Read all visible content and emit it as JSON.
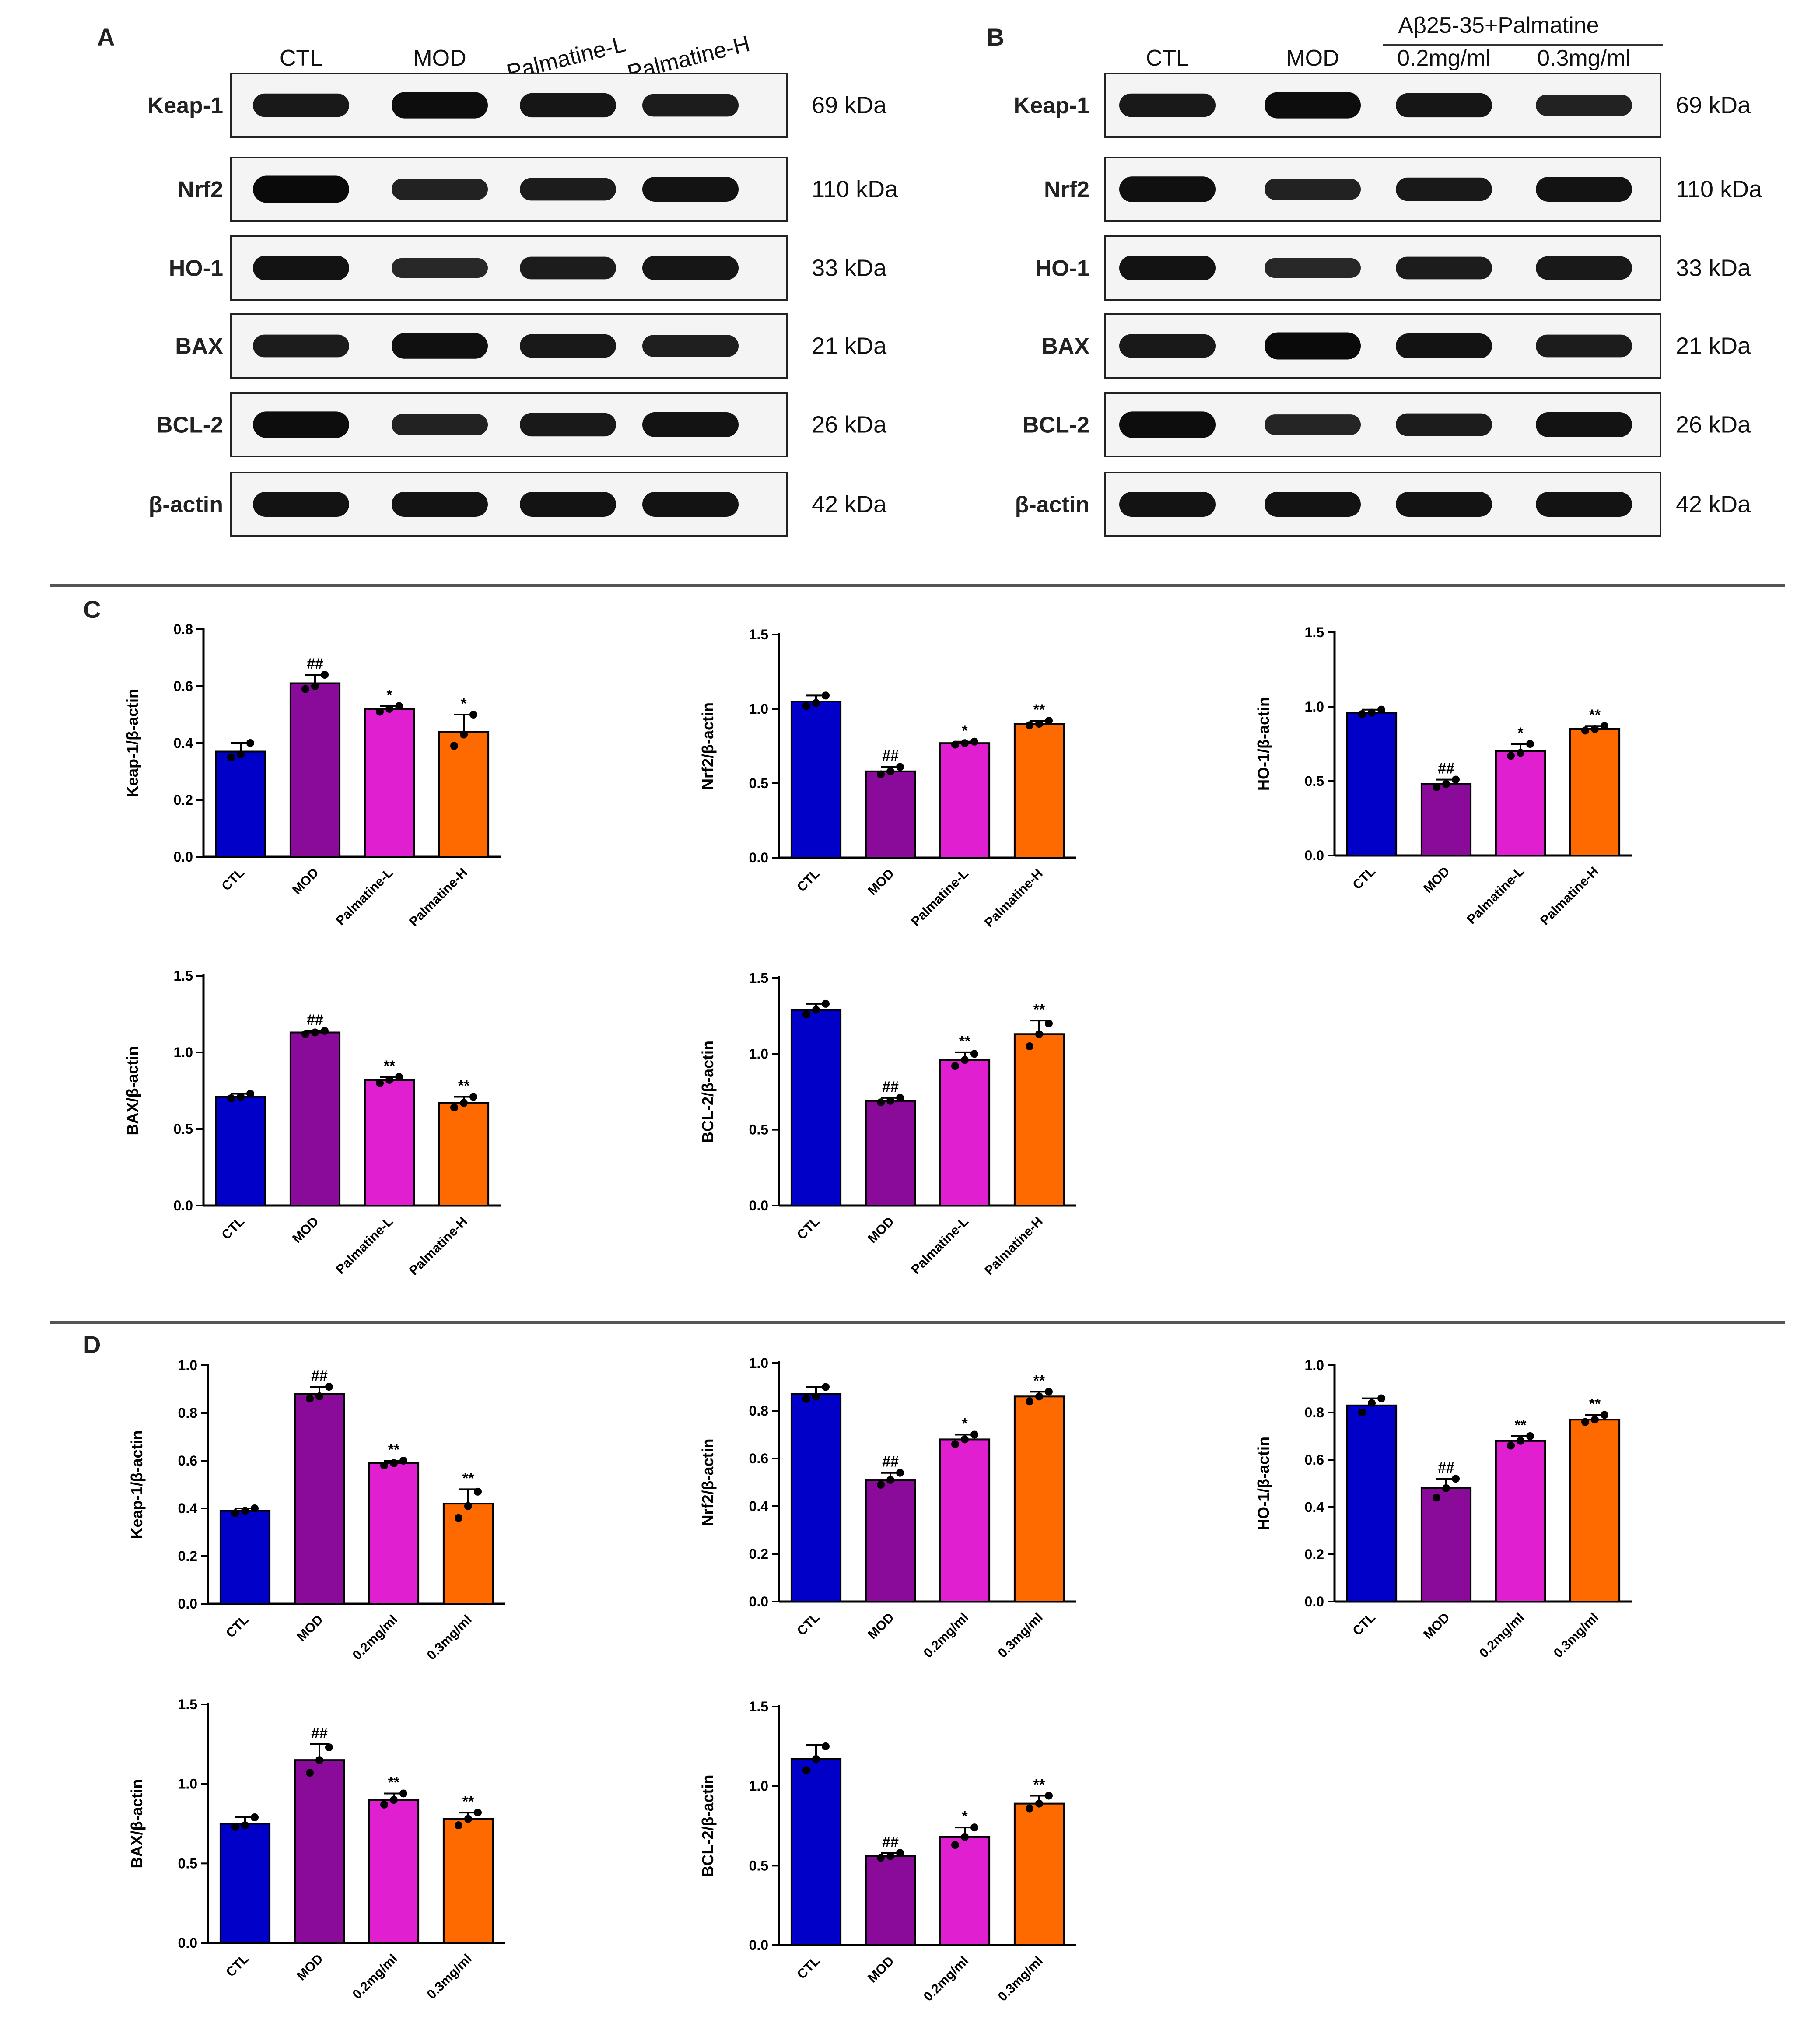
{
  "panels": {
    "A": "A",
    "B": "B",
    "C": "C",
    "D": "D"
  },
  "blot_a": {
    "lanes": [
      "CTL",
      "MOD",
      "Palmatine-L",
      "Palmatine-H"
    ],
    "rows": [
      {
        "protein": "Keap-1",
        "kda": "69 kDa",
        "intensity": [
          0.75,
          0.95,
          0.8,
          0.7
        ]
      },
      {
        "protein": "Nrf2",
        "kda": "110 kDa",
        "intensity": [
          1.0,
          0.6,
          0.7,
          0.85
        ]
      },
      {
        "protein": "HO-1",
        "kda": "33 kDa",
        "intensity": [
          0.85,
          0.5,
          0.7,
          0.8
        ]
      },
      {
        "protein": "BAX",
        "kda": "21 kDa",
        "intensity": [
          0.7,
          0.9,
          0.75,
          0.65
        ]
      },
      {
        "protein": "BCL-2",
        "kda": "26 kDa",
        "intensity": [
          0.95,
          0.6,
          0.75,
          0.85
        ]
      },
      {
        "protein": "β-actin",
        "kda": "42 kDa",
        "intensity": [
          0.85,
          0.85,
          0.85,
          0.85
        ]
      }
    ]
  },
  "blot_b": {
    "header": "Aβ25-35+Palmatine",
    "lanes": [
      "CTL",
      "MOD",
      "0.2mg/ml",
      "0.3mg/ml"
    ],
    "rows": [
      {
        "protein": "Keap-1",
        "kda": "69 kDa",
        "intensity": [
          0.75,
          0.95,
          0.8,
          0.6
        ]
      },
      {
        "protein": "Nrf2",
        "kda": "110 kDa",
        "intensity": [
          0.9,
          0.6,
          0.75,
          0.85
        ]
      },
      {
        "protein": "HO-1",
        "kda": "33 kDa",
        "intensity": [
          0.85,
          0.5,
          0.7,
          0.75
        ]
      },
      {
        "protein": "BAX",
        "kda": "21 kDa",
        "intensity": [
          0.75,
          1.0,
          0.85,
          0.7
        ]
      },
      {
        "protein": "BCL-2",
        "kda": "26 kDa",
        "intensity": [
          0.95,
          0.55,
          0.7,
          0.85
        ]
      },
      {
        "protein": "β-actin",
        "kda": "42 kDa",
        "intensity": [
          0.85,
          0.85,
          0.85,
          0.85
        ]
      }
    ]
  },
  "colors": {
    "CTL": "#0000c8",
    "MOD": "#8a0a9a",
    "L": "#e020d0",
    "H": "#ff6a00"
  },
  "chart_data": [
    {
      "id": "C1",
      "type": "bar",
      "ylabel": "Keap-1/β-actin",
      "ylim": [
        0,
        0.8
      ],
      "ticks": [
        "0.0",
        "0.2",
        "0.4",
        "0.6",
        "0.8"
      ],
      "categories": [
        "CTL",
        "MOD",
        "Palmatine-L",
        "Palmatine-H"
      ],
      "values": [
        0.37,
        0.61,
        0.52,
        0.44
      ],
      "errors": [
        0.03,
        0.03,
        0.01,
        0.06
      ],
      "points": [
        [
          0.35,
          0.36,
          0.4
        ],
        [
          0.59,
          0.6,
          0.64
        ],
        [
          0.51,
          0.52,
          0.53
        ],
        [
          0.39,
          0.43,
          0.5
        ]
      ],
      "sig": [
        "",
        "##",
        "*",
        "*"
      ]
    },
    {
      "id": "C2",
      "type": "bar",
      "ylabel": "Nrf2/β-actin",
      "ylim": [
        0,
        1.5
      ],
      "ticks": [
        "0.0",
        "0.5",
        "1.0",
        "1.5"
      ],
      "categories": [
        "CTL",
        "MOD",
        "Palmatine-L",
        "Palmatine-H"
      ],
      "values": [
        1.05,
        0.58,
        0.77,
        0.9
      ],
      "errors": [
        0.04,
        0.03,
        0.01,
        0.02
      ],
      "points": [
        [
          1.02,
          1.04,
          1.09
        ],
        [
          0.56,
          0.58,
          0.61
        ],
        [
          0.76,
          0.77,
          0.78
        ],
        [
          0.89,
          0.9,
          0.92
        ]
      ],
      "sig": [
        "",
        "##",
        "*",
        "**"
      ]
    },
    {
      "id": "C3",
      "type": "bar",
      "ylabel": "HO-1/β-actin",
      "ylim": [
        0,
        1.5
      ],
      "ticks": [
        "0.0",
        "0.5",
        "1.0",
        "1.5"
      ],
      "categories": [
        "CTL",
        "MOD",
        "Palmatine-L",
        "Palmatine-H"
      ],
      "values": [
        0.96,
        0.48,
        0.7,
        0.85
      ],
      "errors": [
        0.02,
        0.03,
        0.05,
        0.02
      ],
      "points": [
        [
          0.95,
          0.96,
          0.98
        ],
        [
          0.46,
          0.48,
          0.51
        ],
        [
          0.67,
          0.69,
          0.75
        ],
        [
          0.84,
          0.85,
          0.87
        ]
      ],
      "sig": [
        "",
        "##",
        "*",
        "**"
      ]
    },
    {
      "id": "C4",
      "type": "bar",
      "ylabel": "BAX/β-actin",
      "ylim": [
        0,
        1.5
      ],
      "ticks": [
        "0.0",
        "0.5",
        "1.0",
        "1.5"
      ],
      "categories": [
        "CTL",
        "MOD",
        "Palmatine-L",
        "Palmatine-H"
      ],
      "values": [
        0.71,
        1.13,
        0.82,
        0.67
      ],
      "errors": [
        0.02,
        0.01,
        0.02,
        0.04
      ],
      "points": [
        [
          0.7,
          0.71,
          0.73
        ],
        [
          1.12,
          1.13,
          1.14
        ],
        [
          0.8,
          0.82,
          0.84
        ],
        [
          0.64,
          0.67,
          0.71
        ]
      ],
      "sig": [
        "",
        "##",
        "**",
        "**"
      ]
    },
    {
      "id": "C5",
      "type": "bar",
      "ylabel": "BCL-2/β-actin",
      "ylim": [
        0,
        1.5
      ],
      "ticks": [
        "0.0",
        "0.5",
        "1.0",
        "1.5"
      ],
      "categories": [
        "CTL",
        "MOD",
        "Palmatine-L",
        "Palmatine-H"
      ],
      "values": [
        1.29,
        0.69,
        0.96,
        1.13
      ],
      "errors": [
        0.04,
        0.02,
        0.05,
        0.09
      ],
      "points": [
        [
          1.26,
          1.29,
          1.33
        ],
        [
          0.68,
          0.69,
          0.71
        ],
        [
          0.92,
          0.96,
          1.0
        ],
        [
          1.05,
          1.13,
          1.2
        ]
      ],
      "sig": [
        "",
        "##",
        "**",
        "**"
      ]
    },
    {
      "id": "D1",
      "type": "bar",
      "ylabel": "Keap-1/β-actin",
      "ylim": [
        0,
        1.0
      ],
      "ticks": [
        "0.0",
        "0.2",
        "0.4",
        "0.6",
        "0.8",
        "1.0"
      ],
      "categories": [
        "CTL",
        "MOD",
        "0.2mg/ml",
        "0.3mg/ml"
      ],
      "values": [
        0.39,
        0.88,
        0.59,
        0.42
      ],
      "errors": [
        0.01,
        0.03,
        0.01,
        0.06
      ],
      "points": [
        [
          0.38,
          0.39,
          0.4
        ],
        [
          0.86,
          0.87,
          0.91
        ],
        [
          0.58,
          0.59,
          0.6
        ],
        [
          0.36,
          0.41,
          0.47
        ]
      ],
      "sig": [
        "",
        "##",
        "**",
        "**"
      ]
    },
    {
      "id": "D2",
      "type": "bar",
      "ylabel": "Nrf2/β-actin",
      "ylim": [
        0,
        1.0
      ],
      "ticks": [
        "0.0",
        "0.2",
        "0.4",
        "0.6",
        "0.8",
        "1.0"
      ],
      "categories": [
        "CTL",
        "MOD",
        "0.2mg/ml",
        "0.3mg/ml"
      ],
      "values": [
        0.87,
        0.51,
        0.68,
        0.86
      ],
      "errors": [
        0.03,
        0.03,
        0.02,
        0.02
      ],
      "points": [
        [
          0.85,
          0.86,
          0.9
        ],
        [
          0.49,
          0.51,
          0.54
        ],
        [
          0.66,
          0.68,
          0.7
        ],
        [
          0.84,
          0.86,
          0.88
        ]
      ],
      "sig": [
        "",
        "##",
        "*",
        "**"
      ]
    },
    {
      "id": "D3",
      "type": "bar",
      "ylabel": "HO-1/β-actin",
      "ylim": [
        0,
        1.0
      ],
      "ticks": [
        "0.0",
        "0.2",
        "0.4",
        "0.6",
        "0.8",
        "1.0"
      ],
      "categories": [
        "CTL",
        "MOD",
        "0.2mg/ml",
        "0.3mg/ml"
      ],
      "values": [
        0.83,
        0.48,
        0.68,
        0.77
      ],
      "errors": [
        0.03,
        0.04,
        0.02,
        0.02
      ],
      "points": [
        [
          0.8,
          0.84,
          0.86
        ],
        [
          0.44,
          0.48,
          0.52
        ],
        [
          0.66,
          0.68,
          0.7
        ],
        [
          0.76,
          0.77,
          0.79
        ]
      ],
      "sig": [
        "",
        "##",
        "**",
        "**"
      ]
    },
    {
      "id": "D4",
      "type": "bar",
      "ylabel": "BAX/β-actin",
      "ylim": [
        0,
        1.5
      ],
      "ticks": [
        "0.0",
        "0.5",
        "1.0",
        "1.5"
      ],
      "categories": [
        "CTL",
        "MOD",
        "0.2mg/ml",
        "0.3mg/ml"
      ],
      "values": [
        0.75,
        1.15,
        0.9,
        0.78
      ],
      "errors": [
        0.04,
        0.1,
        0.04,
        0.04
      ],
      "points": [
        [
          0.73,
          0.74,
          0.79
        ],
        [
          1.07,
          1.15,
          1.23
        ],
        [
          0.87,
          0.9,
          0.94
        ],
        [
          0.74,
          0.78,
          0.82
        ]
      ],
      "sig": [
        "",
        "##",
        "**",
        "**"
      ]
    },
    {
      "id": "D5",
      "type": "bar",
      "ylabel": "BCL-2/β-actin",
      "ylim": [
        0,
        1.5
      ],
      "ticks": [
        "0.0",
        "0.5",
        "1.0",
        "1.5"
      ],
      "categories": [
        "CTL",
        "MOD",
        "0.2mg/ml",
        "0.3mg/ml"
      ],
      "values": [
        1.17,
        0.56,
        0.68,
        0.89
      ],
      "errors": [
        0.09,
        0.02,
        0.06,
        0.05
      ],
      "points": [
        [
          1.1,
          1.17,
          1.25
        ],
        [
          0.55,
          0.56,
          0.58
        ],
        [
          0.63,
          0.68,
          0.74
        ],
        [
          0.86,
          0.89,
          0.94
        ]
      ],
      "sig": [
        "",
        "##",
        "*",
        "**"
      ]
    }
  ]
}
